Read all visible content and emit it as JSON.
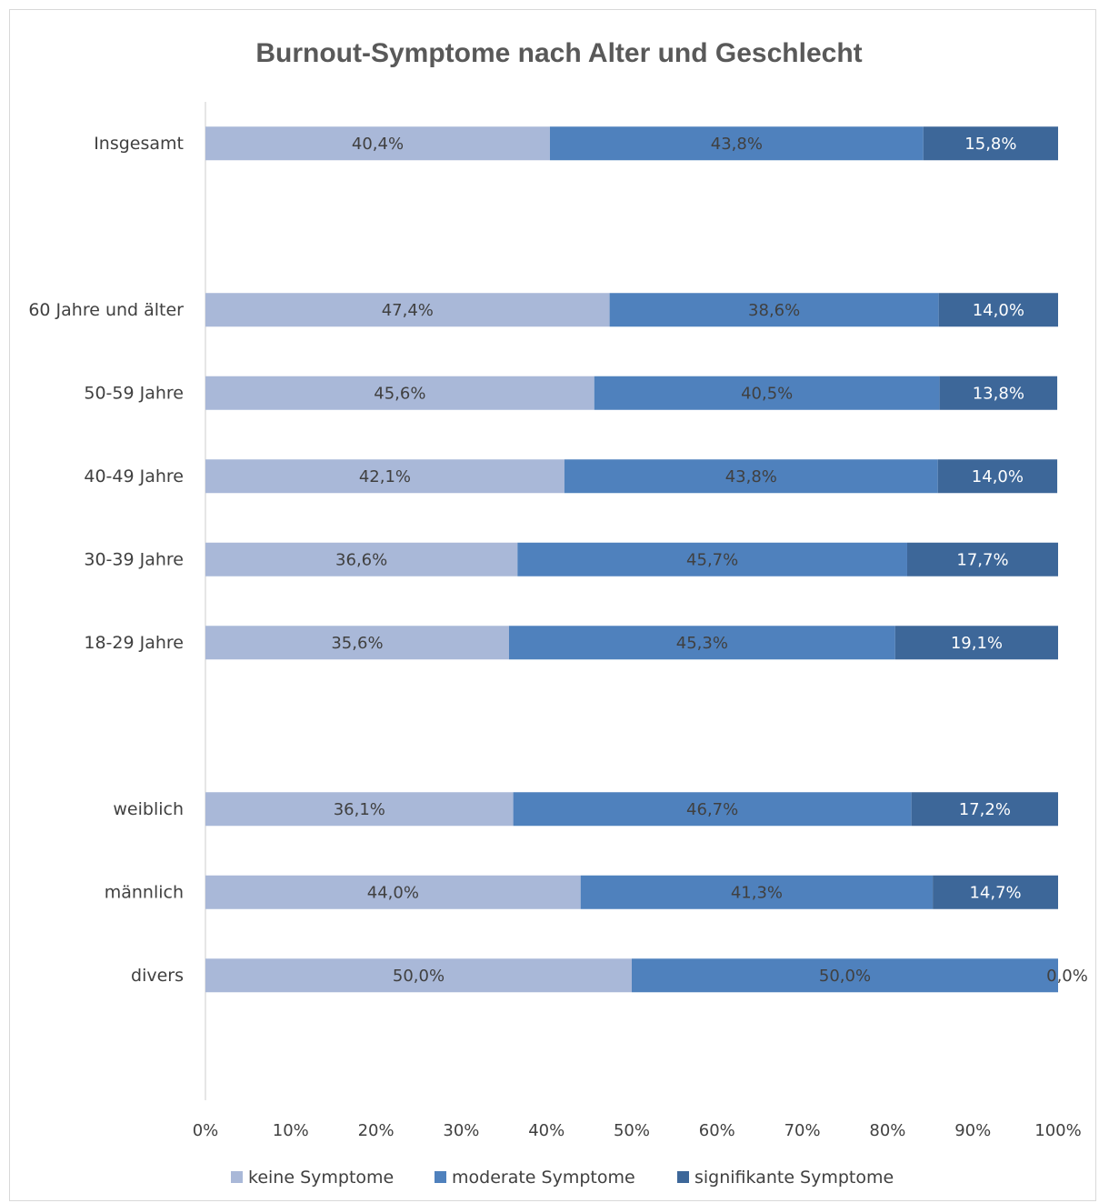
{
  "chart_data": {
    "type": "bar",
    "orientation": "horizontal",
    "stacked": "percent",
    "title": "Burnout-Symptome nach Alter und Geschlecht",
    "categories": [
      "Insgesamt",
      "",
      "60 Jahre und älter",
      "50-59 Jahre",
      "40-49 Jahre",
      "30-39 Jahre",
      "18-29 Jahre",
      "",
      "weiblich",
      "männlich",
      "divers"
    ],
    "series": [
      {
        "name": "keine Symptome",
        "color": "#a9b8d8",
        "label_color": "#404040",
        "values": [
          40.4,
          null,
          47.4,
          45.6,
          42.1,
          36.6,
          35.6,
          null,
          36.1,
          44.0,
          50.0
        ],
        "labels": [
          "40,4%",
          "",
          "47,4%",
          "45,6%",
          "42,1%",
          "36,6%",
          "35,6%",
          "",
          "36,1%",
          "44,0%",
          "50,0%"
        ]
      },
      {
        "name": "moderate Symptome",
        "color": "#4f81bd",
        "label_color": "#404040",
        "values": [
          43.8,
          null,
          38.6,
          40.5,
          43.8,
          45.7,
          45.3,
          null,
          46.7,
          41.3,
          50.0
        ],
        "labels": [
          "43,8%",
          "",
          "38,6%",
          "40,5%",
          "43,8%",
          "45,7%",
          "45,3%",
          "",
          "46,7%",
          "41,3%",
          "50,0%"
        ]
      },
      {
        "name": "signifikante Symptome",
        "color": "#3d6799",
        "label_color": "#ffffff",
        "values": [
          15.8,
          null,
          14.0,
          13.8,
          14.0,
          17.7,
          19.1,
          null,
          17.2,
          14.7,
          0.0
        ],
        "labels": [
          "15,8%",
          "",
          "14,0%",
          "13,8%",
          "14,0%",
          "17,7%",
          "19,1%",
          "",
          "17,2%",
          "14,7%",
          "0,0%"
        ]
      }
    ],
    "xlim": [
      0,
      100
    ],
    "xticks": [
      "0%",
      "10%",
      "20%",
      "30%",
      "40%",
      "50%",
      "60%",
      "70%",
      "80%",
      "90%",
      "100%"
    ],
    "legend_position": "bottom",
    "grid": false
  }
}
